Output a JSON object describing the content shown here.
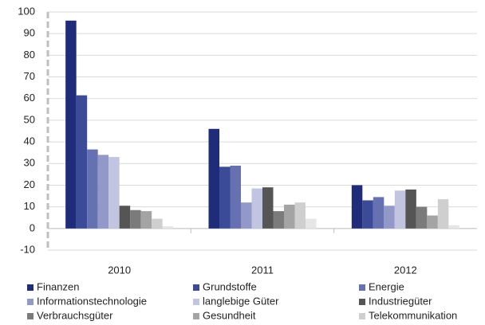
{
  "chart_data": {
    "type": "bar",
    "categories": [
      "2010",
      "2011",
      "2012"
    ],
    "series": [
      {
        "name": "Finanzen",
        "color": "#1f2c7a",
        "values": [
          96,
          46,
          20
        ]
      },
      {
        "name": "Grundstoffe",
        "color": "#3b4b98",
        "values": [
          61.5,
          28.5,
          13
        ]
      },
      {
        "name": "Energie",
        "color": "#6571b1",
        "values": [
          36.5,
          29,
          14.5
        ]
      },
      {
        "name": "Informationstechnologie",
        "color": "#9299c9",
        "values": [
          34,
          12,
          10.5
        ]
      },
      {
        "name": "langlebige Güter",
        "color": "#c1c5e1",
        "values": [
          33,
          18.5,
          17.5
        ]
      },
      {
        "name": "Industriegüter",
        "color": "#555555",
        "values": [
          10.5,
          19,
          18
        ]
      },
      {
        "name": "Verbrauchsgüter",
        "color": "#7b7b7b",
        "values": [
          8.5,
          8,
          10
        ]
      },
      {
        "name": "Gesundheit",
        "color": "#a4a4a4",
        "values": [
          8,
          11,
          6
        ]
      },
      {
        "name": "Telekommunikation",
        "color": "#cfcfcf",
        "values": [
          4.5,
          12,
          13.5
        ]
      },
      {
        "name": null,
        "color": "#e6e6e6",
        "values": [
          1,
          4.5,
          1.5
        ]
      }
    ],
    "ylim": [
      -10,
      100
    ],
    "yticks": [
      -10,
      0,
      10,
      20,
      30,
      40,
      50,
      60,
      70,
      80,
      90,
      100
    ],
    "grid": true
  }
}
